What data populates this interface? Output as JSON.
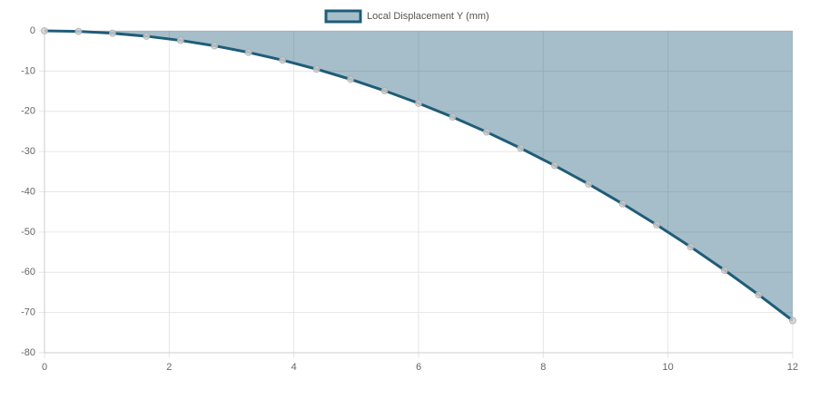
{
  "chart_data": {
    "type": "area",
    "x": [
      0,
      0.545,
      1.091,
      1.636,
      2.182,
      2.727,
      3.273,
      3.818,
      4.364,
      4.909,
      5.455,
      6,
      6.545,
      7.091,
      7.636,
      8.182,
      8.727,
      9.273,
      9.818,
      10.364,
      10.909,
      11.455,
      12
    ],
    "series": [
      {
        "name": "Local Displacement Y (mm)",
        "color": "#1f5c78",
        "fill": "rgba(31,92,120,0.4)",
        "values": [
          0,
          -0.15,
          -0.6,
          -1.34,
          -2.38,
          -3.72,
          -5.36,
          -7.29,
          -9.52,
          -12.05,
          -14.88,
          -18,
          -21.42,
          -25.14,
          -29.16,
          -33.47,
          -38.08,
          -42.99,
          -48.2,
          -53.7,
          -59.5,
          -65.6,
          -72
        ]
      }
    ],
    "xlim": [
      0,
      12
    ],
    "xticks": [
      0,
      2,
      4,
      6,
      8,
      10,
      12
    ],
    "ylim": [
      -80,
      0
    ],
    "yticks": [
      0,
      -10,
      -20,
      -30,
      -40,
      -50,
      -60,
      -70,
      -80
    ],
    "grid": true,
    "legend": "top"
  }
}
